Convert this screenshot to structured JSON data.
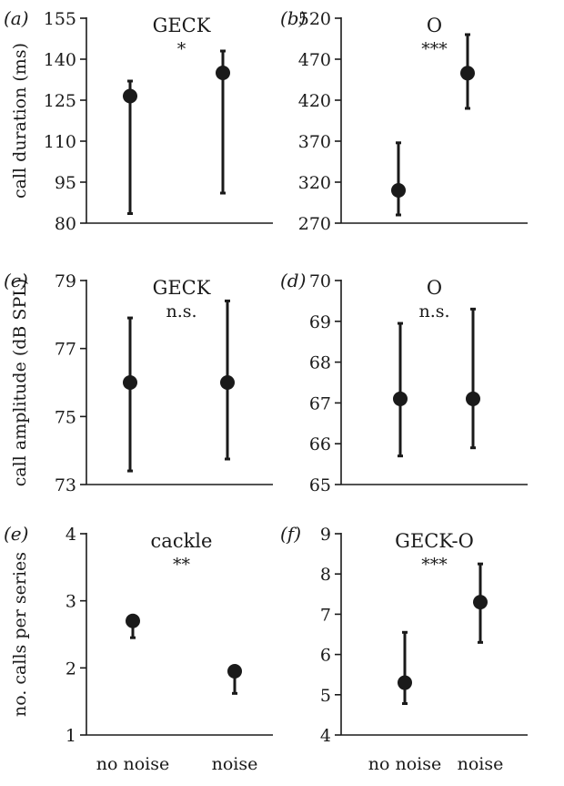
{
  "chart_data": [
    {
      "type": "scatter",
      "panel": "(a)",
      "title": "GECK",
      "significance": "*",
      "ylabel": "call duration (ms)",
      "categories": [
        "no noise",
        "noise"
      ],
      "ylim": [
        80,
        155
      ],
      "yticks": [
        "80",
        "95",
        "110",
        "125",
        "140",
        "155"
      ],
      "points": [
        {
          "category": "no noise",
          "value": 126.5,
          "low": 83.5,
          "high": 132
        },
        {
          "category": "noise",
          "value": 135,
          "low": 91,
          "high": 143
        }
      ]
    },
    {
      "type": "scatter",
      "panel": "(b)",
      "title": "O",
      "significance": "***",
      "ylabel": "",
      "categories": [
        "no noise",
        "noise"
      ],
      "ylim": [
        270,
        520
      ],
      "yticks": [
        "270",
        "320",
        "370",
        "420",
        "470",
        "520"
      ],
      "points": [
        {
          "category": "no noise",
          "value": 310,
          "low": 280,
          "high": 368
        },
        {
          "category": "noise",
          "value": 453,
          "low": 410,
          "high": 500
        }
      ]
    },
    {
      "type": "scatter",
      "panel": "(c)",
      "title": "GECK",
      "significance": "n.s.",
      "ylabel": "call amplitude (dB SPL)",
      "categories": [
        "no noise",
        "noise"
      ],
      "ylim": [
        73,
        79
      ],
      "yticks": [
        "73",
        "75",
        "77",
        "79"
      ],
      "points": [
        {
          "category": "no noise",
          "value": 76.0,
          "low": 73.4,
          "high": 77.9
        },
        {
          "category": "noise",
          "value": 76.0,
          "low": 73.75,
          "high": 78.4
        }
      ]
    },
    {
      "type": "scatter",
      "panel": "(d)",
      "title": "O",
      "significance": "n.s.",
      "ylabel": "",
      "categories": [
        "no noise",
        "noise"
      ],
      "ylim": [
        65,
        70
      ],
      "yticks": [
        "65",
        "66",
        "67",
        "68",
        "69",
        "70"
      ],
      "points": [
        {
          "category": "no noise",
          "value": 67.1,
          "low": 65.7,
          "high": 68.95
        },
        {
          "category": "noise",
          "value": 67.1,
          "low": 65.9,
          "high": 69.3
        }
      ]
    },
    {
      "type": "scatter",
      "panel": "(e)",
      "title": "cackle",
      "significance": "**",
      "ylabel": "no. calls per series",
      "categories": [
        "no noise",
        "noise"
      ],
      "ylim": [
        1,
        4
      ],
      "yticks": [
        "1",
        "2",
        "3",
        "4"
      ],
      "points": [
        {
          "category": "no noise",
          "value": 2.7,
          "low": 2.45,
          "high": 2.7
        },
        {
          "category": "noise",
          "value": 1.95,
          "low": 1.62,
          "high": 1.95
        }
      ]
    },
    {
      "type": "scatter",
      "panel": "(f)",
      "title": "GECK-O",
      "significance": "***",
      "ylabel": "",
      "categories": [
        "no noise",
        "noise"
      ],
      "ylim": [
        4,
        9
      ],
      "yticks": [
        "4",
        "5",
        "6",
        "7",
        "8",
        "9"
      ],
      "points": [
        {
          "category": "no noise",
          "value": 5.3,
          "low": 4.78,
          "high": 6.55
        },
        {
          "category": "noise",
          "value": 7.3,
          "low": 6.3,
          "high": 8.25
        }
      ]
    }
  ]
}
